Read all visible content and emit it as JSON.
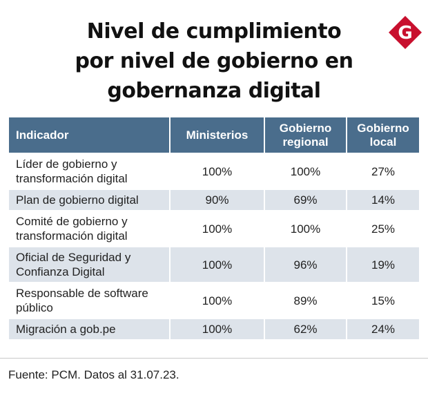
{
  "title": {
    "line1": "Nivel de cumplimiento",
    "line2": "por nivel de gobierno en",
    "line3": "gobernanza digital"
  },
  "logo": {
    "letter": "G",
    "color": "#c8102e"
  },
  "colors": {
    "header_bg": "#4a6d8c",
    "row_alt": "#dde3ea"
  },
  "chart_data": {
    "type": "table",
    "title": "Nivel de cumplimiento por nivel de gobierno en gobernanza digital",
    "columns": [
      "Indicador",
      "Ministerios",
      "Gobierno regional",
      "Gobierno local"
    ],
    "rows": [
      {
        "indicador": "Líder de gobierno y transformación digital",
        "ministerios": "100%",
        "regional": "100%",
        "local": "27%"
      },
      {
        "indicador": "Plan de gobierno digital",
        "ministerios": "90%",
        "regional": "69%",
        "local": "14%"
      },
      {
        "indicador": "Comité de gobierno y transformación digital",
        "ministerios": "100%",
        "regional": "100%",
        "local": "25%"
      },
      {
        "indicador": "Oficial de Seguridad y Confianza Digital",
        "ministerios": "100%",
        "regional": "96%",
        "local": "19%"
      },
      {
        "indicador": "Responsable de software público",
        "ministerios": "100%",
        "regional": "89%",
        "local": "15%"
      },
      {
        "indicador": "Migración a gob.pe",
        "ministerios": "100%",
        "regional": "62%",
        "local": "24%"
      }
    ]
  },
  "source": "Fuente: PCM. Datos al 31.07.23."
}
